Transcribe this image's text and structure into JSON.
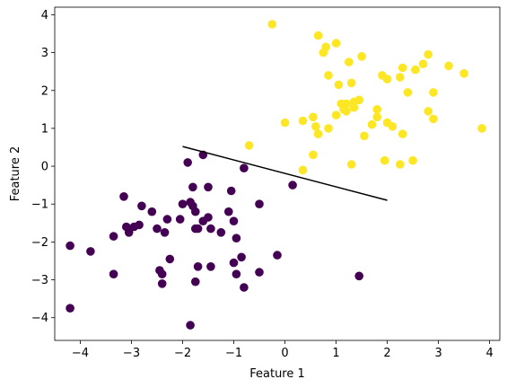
{
  "chart_data": {
    "type": "scatter",
    "xlabel": "Feature 1",
    "ylabel": "Feature 2",
    "xlim": [
      -4.5,
      4.2
    ],
    "ylim": [
      -4.6,
      4.2
    ],
    "xticks": [
      -4,
      -3,
      -2,
      -1,
      0,
      1,
      2,
      3,
      4
    ],
    "yticks": [
      -4,
      -3,
      -2,
      -1,
      0,
      1,
      2,
      3,
      4
    ],
    "xtick_labels": [
      "−4",
      "−3",
      "−2",
      "−1",
      "0",
      "1",
      "2",
      "3",
      "4"
    ],
    "ytick_labels": [
      "−4",
      "−3",
      "−2",
      "−1",
      "0",
      "1",
      "2",
      "3",
      "4"
    ],
    "grid": false,
    "colors": {
      "class_0": "#440154",
      "class_1": "#fde725",
      "boundary": "#000000"
    },
    "series": [
      {
        "class": 0,
        "points": [
          [
            -4.2,
            -2.1
          ],
          [
            -4.2,
            -3.75
          ],
          [
            -3.8,
            -2.25
          ],
          [
            -3.35,
            -1.85
          ],
          [
            -3.35,
            -2.85
          ],
          [
            -3.15,
            -0.8
          ],
          [
            -3.1,
            -1.6
          ],
          [
            -3.05,
            -1.75
          ],
          [
            -2.95,
            -1.6
          ],
          [
            -2.85,
            -1.55
          ],
          [
            -2.8,
            -1.05
          ],
          [
            -2.6,
            -1.2
          ],
          [
            -2.5,
            -1.65
          ],
          [
            -2.45,
            -2.75
          ],
          [
            -2.4,
            -2.85
          ],
          [
            -2.4,
            -3.1
          ],
          [
            -2.35,
            -1.75
          ],
          [
            -2.3,
            -1.4
          ],
          [
            -2.25,
            -2.45
          ],
          [
            -2.05,
            -1.4
          ],
          [
            -2.0,
            -1.0
          ],
          [
            -1.9,
            0.1
          ],
          [
            -1.85,
            -0.95
          ],
          [
            -1.8,
            -0.55
          ],
          [
            -1.8,
            -1.05
          ],
          [
            -1.75,
            -1.2
          ],
          [
            -1.75,
            -1.65
          ],
          [
            -1.7,
            -1.65
          ],
          [
            -1.7,
            -2.65
          ],
          [
            -1.75,
            -3.05
          ],
          [
            -1.85,
            -4.2
          ],
          [
            -1.6,
            0.3
          ],
          [
            -1.6,
            -1.45
          ],
          [
            -1.5,
            -0.55
          ],
          [
            -1.5,
            -1.35
          ],
          [
            -1.45,
            -1.65
          ],
          [
            -1.45,
            -2.65
          ],
          [
            -1.25,
            -1.75
          ],
          [
            -1.1,
            -1.2
          ],
          [
            -1.05,
            -0.65
          ],
          [
            -1.0,
            -1.45
          ],
          [
            -1.0,
            -2.55
          ],
          [
            -0.95,
            -1.9
          ],
          [
            -0.95,
            -2.85
          ],
          [
            -0.85,
            -2.4
          ],
          [
            -0.8,
            -3.2
          ],
          [
            -0.8,
            -0.05
          ],
          [
            -0.5,
            -1.0
          ],
          [
            -0.5,
            -2.8
          ],
          [
            -0.15,
            -2.35
          ],
          [
            0.15,
            -0.5
          ],
          [
            1.45,
            -2.9
          ]
        ]
      },
      {
        "class": 1,
        "points": [
          [
            -0.7,
            0.55
          ],
          [
            -0.25,
            3.75
          ],
          [
            0.0,
            1.15
          ],
          [
            0.35,
            -0.1
          ],
          [
            0.35,
            1.2
          ],
          [
            0.55,
            1.3
          ],
          [
            0.55,
            0.3
          ],
          [
            0.6,
            1.05
          ],
          [
            0.65,
            0.85
          ],
          [
            0.65,
            3.45
          ],
          [
            0.75,
            3.0
          ],
          [
            0.8,
            3.15
          ],
          [
            0.85,
            2.4
          ],
          [
            0.85,
            1.0
          ],
          [
            1.0,
            3.25
          ],
          [
            1.0,
            1.35
          ],
          [
            1.05,
            2.15
          ],
          [
            1.1,
            1.65
          ],
          [
            1.15,
            1.6
          ],
          [
            1.15,
            1.5
          ],
          [
            1.2,
            1.45
          ],
          [
            1.2,
            1.65
          ],
          [
            1.25,
            2.75
          ],
          [
            1.3,
            2.2
          ],
          [
            1.3,
            0.05
          ],
          [
            1.35,
            1.7
          ],
          [
            1.35,
            1.55
          ],
          [
            1.45,
            1.75
          ],
          [
            1.5,
            2.9
          ],
          [
            1.55,
            0.8
          ],
          [
            1.7,
            1.1
          ],
          [
            1.8,
            1.3
          ],
          [
            1.8,
            1.5
          ],
          [
            1.9,
            2.4
          ],
          [
            1.95,
            0.15
          ],
          [
            2.0,
            1.15
          ],
          [
            2.0,
            2.3
          ],
          [
            2.1,
            1.05
          ],
          [
            2.25,
            0.05
          ],
          [
            2.25,
            2.35
          ],
          [
            2.3,
            0.85
          ],
          [
            2.3,
            2.6
          ],
          [
            2.4,
            1.95
          ],
          [
            2.5,
            0.15
          ],
          [
            2.55,
            2.55
          ],
          [
            2.7,
            2.7
          ],
          [
            2.8,
            2.95
          ],
          [
            2.8,
            1.45
          ],
          [
            2.9,
            1.25
          ],
          [
            2.9,
            1.95
          ],
          [
            3.2,
            2.65
          ],
          [
            3.5,
            2.45
          ],
          [
            3.85,
            1.0
          ]
        ]
      }
    ],
    "boundary_line": {
      "x": [
        -2.0,
        2.0
      ],
      "y": [
        0.52,
        -0.9
      ]
    }
  }
}
